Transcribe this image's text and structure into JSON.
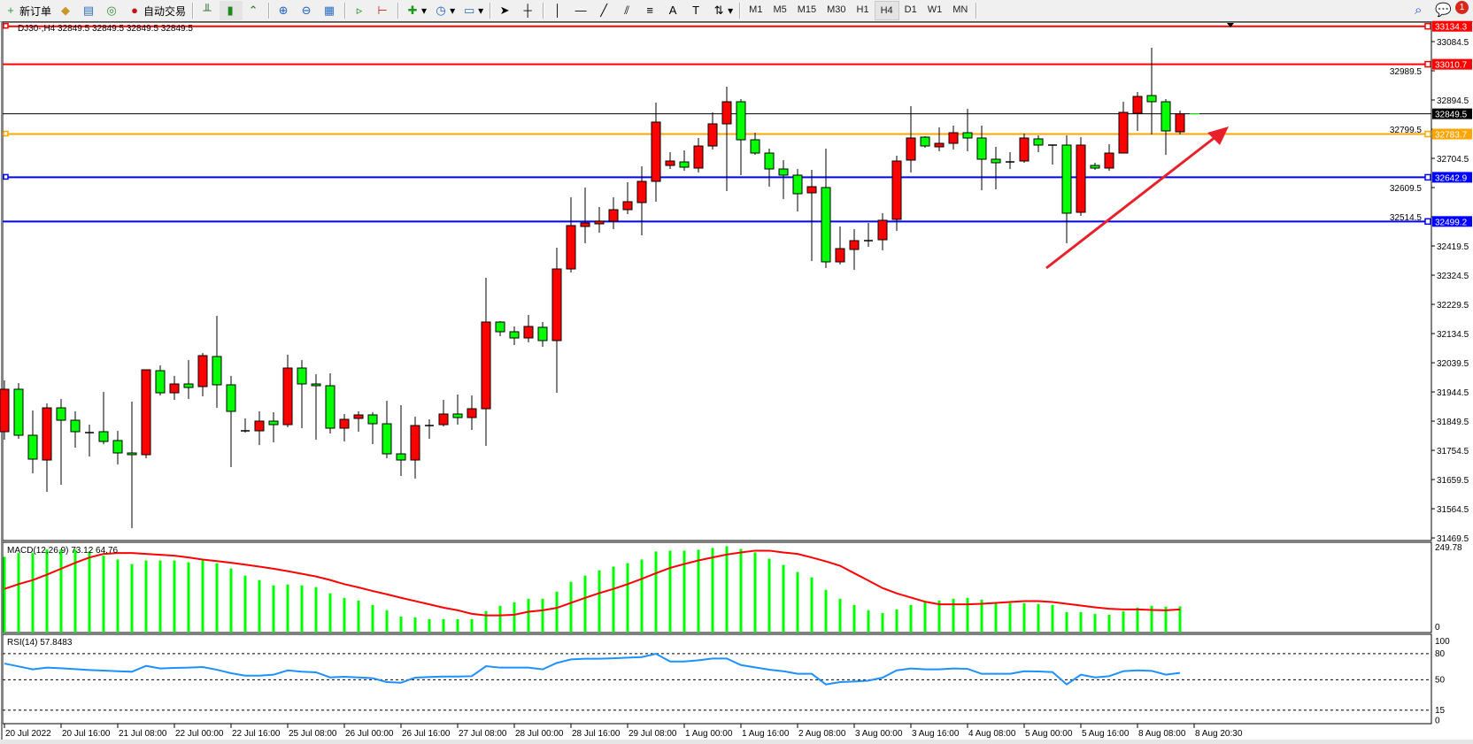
{
  "toolbar": {
    "new_order": "新订单",
    "auto_trading": "自动交易",
    "icons": [
      "new-order-icon",
      "history-center-icon",
      "global-variables-icon",
      "signals-icon",
      "auto-trading-icon",
      "bar-chart-icon",
      "candlestick-icon",
      "line-chart-icon",
      "zoom-in-icon",
      "zoom-out-icon",
      "tile-windows-icon",
      "auto-scroll-icon",
      "chart-shift-icon",
      "indicators-icon",
      "periods-icon",
      "templates-icon",
      "cursor-icon",
      "crosshair-icon",
      "vertical-line-icon",
      "horizontal-line-icon",
      "trendline-icon",
      "equidistant-channel-icon",
      "fibonacci-icon",
      "text-icon",
      "text-label-icon",
      "arrows-icon"
    ],
    "timeframes": [
      "M1",
      "M5",
      "M15",
      "M30",
      "H1",
      "H4",
      "D1",
      "W1",
      "MN"
    ],
    "selected_timeframe": "H4",
    "notification_count": "1"
  },
  "chart": {
    "title": "DJ30-,H4  32849.5 32849.5 32849.5 32849.5",
    "price_axis": [
      "33084.5",
      "32989.5",
      "32894.5",
      "32799.5",
      "32704.5",
      "32609.5",
      "32514.5",
      "32419.5",
      "32324.5",
      "32229.5",
      "32134.5",
      "32039.5",
      "31944.5",
      "31849.5",
      "31754.5",
      "31659.5",
      "31564.5",
      "31469.5"
    ],
    "time_axis": [
      "20 Jul 2022",
      "20 Jul 16:00",
      "21 Jul 08:00",
      "22 Jul 00:00",
      "22 Jul 16:00",
      "25 Jul 08:00",
      "26 Jul 00:00",
      "26 Jul 16:00",
      "27 Jul 08:00",
      "28 Jul 00:00",
      "28 Jul 16:00",
      "29 Jul 08:00",
      "1 Aug 00:00",
      "1 Aug 16:00",
      "2 Aug 08:00",
      "3 Aug 00:00",
      "3 Aug 16:00",
      "4 Aug 08:00",
      "5 Aug 00:00",
      "5 Aug 16:00",
      "8 Aug 08:00",
      "8 Aug 20:30"
    ],
    "horizontal_lines": [
      {
        "price": 33134.3,
        "label": "33134.3",
        "color": "#ff0000"
      },
      {
        "price": 33010.7,
        "label": "33010.7",
        "color": "#ff0000"
      },
      {
        "price": 32849.5,
        "label": "32849.5",
        "color": "#000000"
      },
      {
        "price": 32783.7,
        "label": "32783.7",
        "color": "#ffa500"
      },
      {
        "price": 32642.9,
        "label": "32642.9",
        "color": "#0000ff"
      },
      {
        "price": 32499.2,
        "label": "32499.2",
        "color": "#0000ff"
      }
    ],
    "arrow_color": "#e8202a",
    "colors": {
      "bull": "#ff0000",
      "bear": "#00ff00",
      "outline": "#000000",
      "macd_hist": "#00ff00",
      "macd_signal": "#ff0000",
      "rsi": "#1e90ff"
    }
  },
  "macd": {
    "label": "MACD(12,26,9) 73.12 64.76",
    "axis_max": "249.78",
    "axis_zero": "0"
  },
  "rsi": {
    "label": "RSI(14) 57.8483",
    "levels": [
      "100",
      "80",
      "50",
      "15",
      "0"
    ]
  },
  "chart_data": [
    {
      "type": "candlestick",
      "title": "DJ30-,H4",
      "ylim": [
        31469.5,
        33134.3
      ],
      "ohlc": [
        [
          31815.1,
          31982.0,
          31789.2,
          31953.3
        ],
        [
          31953.3,
          31973.4,
          31792.1,
          31803.6
        ],
        [
          31803.6,
          31884.2,
          31679.8,
          31725.9
        ],
        [
          31723.0,
          31907.2,
          31619.4,
          31892.8
        ],
        [
          31892.8,
          31921.6,
          31642.4,
          31852.5
        ],
        [
          31852.5,
          31881.3,
          31763.3,
          31815.1
        ],
        [
          31812.2,
          31838.1,
          31734.5,
          31812.2
        ],
        [
          31815.1,
          31944.6,
          31774.8,
          31783.4
        ],
        [
          31786.3,
          31818.0,
          31708.6,
          31746.0
        ],
        [
          31746.0,
          31913.0,
          31501.3,
          31740.3
        ],
        [
          31740.3,
          32016.6,
          31728.7,
          32016.6
        ],
        [
          32013.7,
          32031.0,
          31933.1,
          31941.7
        ],
        [
          31941.7,
          31996.4,
          31918.7,
          31970.5
        ],
        [
          31970.5,
          32048.3,
          31921.6,
          31959.0
        ],
        [
          31961.9,
          32071.3,
          31930.2,
          32062.6
        ],
        [
          32059.8,
          32192.2,
          31892.8,
          31967.7
        ],
        [
          31967.7,
          31996.4,
          31700.0,
          31881.3
        ],
        [
          31818.0,
          31858.3,
          31812.2,
          31818.0
        ],
        [
          31818.0,
          31881.3,
          31771.9,
          31849.6
        ],
        [
          31849.6,
          31878.4,
          31780.5,
          31838.1
        ],
        [
          31838.1,
          32065.5,
          31829.5,
          32022.3
        ],
        [
          32022.3,
          32048.3,
          31826.6,
          31970.5
        ],
        [
          31970.5,
          32002.2,
          31789.2,
          31964.8
        ],
        [
          31964.8,
          32005.1,
          31809.3,
          31826.6
        ],
        [
          31826.6,
          31872.7,
          31783.4,
          31855.4
        ],
        [
          31858.3,
          31881.3,
          31815.1,
          31869.8
        ],
        [
          31869.8,
          31878.4,
          31774.8,
          31841.0
        ],
        [
          31841.0,
          31915.8,
          31728.7,
          31743.1
        ],
        [
          31743.1,
          31901.4,
          31671.2,
          31723.0
        ],
        [
          31723.0,
          31864.0,
          31662.5,
          31835.2
        ],
        [
          31835.2,
          31855.4,
          31792.1,
          31835.2
        ],
        [
          31838.1,
          31918.7,
          31832.4,
          31872.7
        ],
        [
          31872.7,
          31936.0,
          31838.1,
          31861.1
        ],
        [
          31861.1,
          31933.1,
          31820.8,
          31889.9
        ],
        [
          31889.9,
          32315.9,
          31769.0,
          32172.0
        ],
        [
          32172.0,
          32174.9,
          32126.0,
          32140.4
        ],
        [
          32140.4,
          32157.6,
          32097.2,
          32120.2
        ],
        [
          32120.2,
          32195.1,
          32105.8,
          32157.6
        ],
        [
          32154.8,
          32172.0,
          32091.4,
          32111.6
        ],
        [
          32111.6,
          32413.8,
          31941.7,
          32344.7
        ],
        [
          32344.7,
          32577.9,
          32333.2,
          32485.8
        ],
        [
          32482.9,
          32609.6,
          32428.2,
          32494.4
        ],
        [
          32491.5,
          32546.2,
          32462.8,
          32500.2
        ],
        [
          32500.2,
          32577.9,
          32474.3,
          32537.6
        ],
        [
          32537.6,
          32626.8,
          32523.2,
          32563.5
        ],
        [
          32560.6,
          32678.6,
          32454.1,
          32629.7
        ],
        [
          32629.7,
          32885.9,
          32563.5,
          32822.6
        ],
        [
          32681.5,
          32724.7,
          32670.0,
          32695.9
        ],
        [
          32693.0,
          32730.5,
          32664.2,
          32675.8
        ],
        [
          32672.9,
          32770.8,
          32658.5,
          32744.8
        ],
        [
          32744.8,
          32854.2,
          32733.3,
          32816.8
        ],
        [
          32816.8,
          32937.7,
          32598.0,
          32888.8
        ],
        [
          32888.8,
          32897.4,
          32649.9,
          32765.0
        ],
        [
          32765.0,
          32788.0,
          32716.1,
          32721.8
        ],
        [
          32721.8,
          32736.2,
          32612.4,
          32670.0
        ],
        [
          32670.0,
          32698.8,
          32572.1,
          32649.9
        ],
        [
          32649.9,
          32670.0,
          32531.8,
          32589.4
        ],
        [
          32592.3,
          32667.1,
          32370.6,
          32612.4
        ],
        [
          32609.6,
          32736.2,
          32347.6,
          32367.8
        ],
        [
          32367.8,
          32482.9,
          32359.1,
          32410.9
        ],
        [
          32408.1,
          32474.3,
          32341.9,
          32436.8
        ],
        [
          32436.8,
          32494.4,
          32416.7,
          32436.8
        ],
        [
          32439.7,
          32526.1,
          32405.2,
          32503.1
        ],
        [
          32505.9,
          32713.2,
          32468.5,
          32695.9
        ],
        [
          32698.8,
          32874.4,
          32658.5,
          32770.8
        ],
        [
          32773.6,
          32776.5,
          32739.1,
          32744.8
        ],
        [
          32742.0,
          32805.3,
          32727.6,
          32753.5
        ],
        [
          32753.5,
          32811.1,
          32733.3,
          32788.0
        ],
        [
          32788.0,
          32865.7,
          32727.6,
          32770.8
        ],
        [
          32770.8,
          32811.1,
          32600.9,
          32701.7
        ],
        [
          32701.7,
          32742.0,
          32603.8,
          32690.2
        ],
        [
          32693.0,
          32724.7,
          32670.0,
          32693.0
        ],
        [
          32695.9,
          32785.2,
          32690.2,
          32770.8
        ],
        [
          32767.9,
          32779.4,
          32724.7,
          32747.7
        ],
        [
          32747.7,
          32747.7,
          32684.4,
          32747.7
        ],
        [
          32747.7,
          32779.4,
          32428.2,
          32526.1
        ],
        [
          32529.0,
          32773.6,
          32517.4,
          32747.7
        ],
        [
          32681.5,
          32690.2,
          32667.1,
          32672.9
        ],
        [
          32672.9,
          32750.6,
          32664.2,
          32721.8
        ],
        [
          32721.8,
          32888.8,
          32721.8,
          32854.2
        ],
        [
          32851.4,
          32920.4,
          32793.8,
          32906.0
        ],
        [
          32908.9,
          33064.4,
          32782.3,
          32888.8
        ],
        [
          32888.8,
          32897.4,
          32716.1,
          32793.8
        ],
        [
          32790.9,
          32860.0,
          32782.3,
          32849.5
        ]
      ]
    },
    {
      "type": "bar",
      "title": "MACD(12,26,9)",
      "ylim": [
        0,
        249.78
      ],
      "series": [
        {
          "name": "MACD",
          "values": [
            211.7,
            222.4,
            222.4,
            232.4,
            232.4,
            232.4,
            226.6,
            215.0,
            204.2,
            191.7,
            201.7,
            201.7,
            201.7,
            196.7,
            201.7,
            194.2,
            179.3,
            159.4,
            146.9,
            132.0,
            134.5,
            132.0,
            127.0,
            109.6,
            97.1,
            89.6,
            77.2,
            62.3,
            44.8,
            42.3,
            37.4,
            37.4,
            37.4,
            37.4,
            59.8,
            74.7,
            84.7,
            94.6,
            94.6,
            114.5,
            141.9,
            159.4,
            174.3,
            184.3,
            194.2,
            204.2,
            226.6,
            229.1,
            229.1,
            231.6,
            236.6,
            241.5,
            234.1,
            224.1,
            206.7,
            189.2,
            169.3,
            154.4,
            119.5,
            94.6,
            77.2,
            62.3,
            54.8,
            64.7,
            77.2,
            84.7,
            89.6,
            94.6,
            97.1,
            92.1,
            82.2,
            82.2,
            82.2,
            79.7,
            77.2,
            57.3,
            57.3,
            52.3,
            49.8,
            59.8,
            69.7,
            74.7,
            72.2,
            73.12
          ]
        },
        {
          "name": "Signal",
          "type": "line",
          "values": [
            122.0,
            135.3,
            146.9,
            161.9,
            178.5,
            195.1,
            210.0,
            220.0,
            222.4,
            222.4,
            220.0,
            217.5,
            215.0,
            210.0,
            204.2,
            200.0,
            195.1,
            190.1,
            184.3,
            178.5,
            171.8,
            164.3,
            156.9,
            146.9,
            135.3,
            126.2,
            116.2,
            107.1,
            97.1,
            88.0,
            78.9,
            69.7,
            62.3,
            52.3,
            48.1,
            48.1,
            49.8,
            58.1,
            62.3,
            68.9,
            83.0,
            97.1,
            110.4,
            122.0,
            135.3,
            150.2,
            166.0,
            180.9,
            191.7,
            201.7,
            210.0,
            218.3,
            224.1,
            229.1,
            229.1,
            224.1,
            220.0,
            210.0,
            199.2,
            186.8,
            166.0,
            145.3,
            124.5,
            109.6,
            97.9,
            86.3,
            78.9,
            78.9,
            78.9,
            80.5,
            83.0,
            85.5,
            88.0,
            88.0,
            85.5,
            80.5,
            75.5,
            70.6,
            66.4,
            64.7,
            64.7,
            63.1,
            62.3,
            64.76
          ]
        }
      ]
    },
    {
      "type": "line",
      "title": "RSI(14)",
      "ylim": [
        0,
        100
      ],
      "levels": [
        80,
        50,
        15
      ],
      "values": [
        68.6,
        65.3,
        61.9,
        63.9,
        63.2,
        62.2,
        61.2,
        60.5,
        59.8,
        59.2,
        65.9,
        62.9,
        63.6,
        63.9,
        64.6,
        61.5,
        57.5,
        54.7,
        54.7,
        55.8,
        60.8,
        59.2,
        58.5,
        52.7,
        53.4,
        52.7,
        51.7,
        47.3,
        46.6,
        52.4,
        53.1,
        53.7,
        53.7,
        54.1,
        65.6,
        63.9,
        63.9,
        63.9,
        61.9,
        69.3,
        73.4,
        74.1,
        74.1,
        74.7,
        75.4,
        76.1,
        79.8,
        71.0,
        71.0,
        72.4,
        74.4,
        74.4,
        66.9,
        64.2,
        61.5,
        59.8,
        56.8,
        56.8,
        44.6,
        47.3,
        48.0,
        49.0,
        52.4,
        60.8,
        62.9,
        61.9,
        61.9,
        62.9,
        62.5,
        56.8,
        56.8,
        56.8,
        59.8,
        59.5,
        58.8,
        44.6,
        55.8,
        52.7,
        54.1,
        59.8,
        60.8,
        60.2,
        55.8,
        57.85
      ]
    }
  ]
}
